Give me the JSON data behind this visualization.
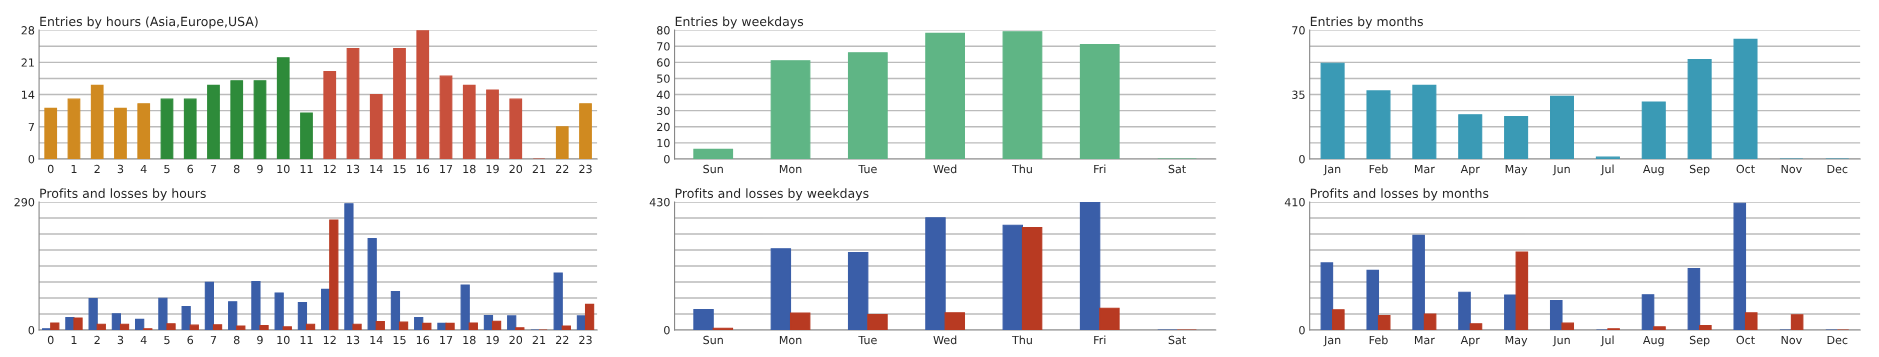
{
  "chart_data": [
    {
      "type": "bar",
      "title": "Entries by hours (Asia,Europe,USA)",
      "categories": [
        "0",
        "1",
        "2",
        "3",
        "4",
        "5",
        "6",
        "7",
        "8",
        "9",
        "10",
        "11",
        "12",
        "13",
        "14",
        "15",
        "16",
        "17",
        "18",
        "19",
        "20",
        "21",
        "22",
        "23"
      ],
      "values": [
        11,
        13,
        16,
        11,
        12,
        13,
        13,
        16,
        17,
        17,
        22,
        10,
        19,
        24,
        14,
        24,
        28,
        18,
        16,
        15,
        13,
        0,
        7,
        12
      ],
      "colors": [
        "#d08a20",
        "#d08a20",
        "#d08a20",
        "#d08a20",
        "#d08a20",
        "#2e8b3a",
        "#2e8b3a",
        "#2e8b3a",
        "#2e8b3a",
        "#2e8b3a",
        "#2e8b3a",
        "#2e8b3a",
        "#c8503c",
        "#c8503c",
        "#c8503c",
        "#c8503c",
        "#c8503c",
        "#c8503c",
        "#c8503c",
        "#c8503c",
        "#c8503c",
        "#c8503c",
        "#d08a20",
        "#d08a20"
      ],
      "ylim": [
        0,
        28
      ],
      "yticks": [
        0,
        {
          "value": 3.5,
          "label": null
        },
        7,
        {
          "value": 10.5,
          "label": null
        },
        14,
        {
          "value": 17.5,
          "label": null
        },
        21,
        {
          "value": 24.5,
          "label": null
        },
        28
      ],
      "grid": "y"
    },
    {
      "type": "bar",
      "title": "Entries by weekdays",
      "categories": [
        "Sun",
        "Mon",
        "Tue",
        "Wed",
        "Thu",
        "Fri",
        "Sat"
      ],
      "values": [
        6,
        61,
        66,
        78,
        79,
        71,
        0
      ],
      "color": "#5fb585",
      "ylim": [
        0,
        80
      ],
      "yticks": [
        0,
        10,
        20,
        30,
        40,
        50,
        60,
        70,
        80
      ],
      "grid": "y"
    },
    {
      "type": "bar",
      "title": "Entries by months",
      "categories": [
        "Jan",
        "Feb",
        "Mar",
        "Apr",
        "May",
        "Jun",
        "Jul",
        "Aug",
        "Sep",
        "Oct",
        "Nov",
        "Dec"
      ],
      "values": [
        52,
        37,
        40,
        24,
        23,
        34,
        1,
        31,
        54,
        65,
        0,
        0
      ],
      "color": "#3a9ab5",
      "ylim": [
        0,
        70
      ],
      "yticks": [
        0,
        {
          "value": 8.75,
          "label": null
        },
        {
          "value": 17.5,
          "label": null
        },
        {
          "value": 26.25,
          "label": null
        },
        35,
        {
          "value": 43.75,
          "label": null
        },
        {
          "value": 52.5,
          "label": null
        },
        {
          "value": 61.25,
          "label": null
        },
        70
      ],
      "grid": "y"
    },
    {
      "type": "bar",
      "title": "Profits and losses by hours",
      "categories": [
        "0",
        "1",
        "2",
        "3",
        "4",
        "5",
        "6",
        "7",
        "8",
        "9",
        "10",
        "11",
        "12",
        "13",
        "14",
        "15",
        "16",
        "17",
        "18",
        "19",
        "20",
        "21",
        "22",
        "23"
      ],
      "series": [
        {
          "color": "#3a5ea8",
          "values": [
            3,
            28,
            71,
            37,
            24,
            72,
            53,
            108,
            64,
            110,
            84,
            62,
            92,
            286,
            207,
            87,
            28,
            15,
            102,
            33,
            32,
            0,
            129,
            32
          ]
        },
        {
          "color": "#b83a22",
          "values": [
            16,
            27,
            13,
            13,
            3,
            14,
            11,
            12,
            9,
            10,
            7,
            13,
            249,
            13,
            19,
            18,
            15,
            15,
            16,
            20,
            5,
            0,
            9,
            58
          ]
        }
      ],
      "ylim": [
        0,
        290
      ],
      "yticks": [
        0,
        {
          "value": 36.25,
          "label": null
        },
        {
          "value": 72.5,
          "label": null
        },
        {
          "value": 108.75,
          "label": null
        },
        {
          "value": 145,
          "label": null
        },
        {
          "value": 181.25,
          "label": null
        },
        {
          "value": 217.5,
          "label": null
        },
        {
          "value": 253.75,
          "label": null
        },
        290
      ],
      "grid": "y"
    },
    {
      "type": "bar",
      "title": "Profits and losses by weekdays",
      "categories": [
        "Sun",
        "Mon",
        "Tue",
        "Wed",
        "Thu",
        "Fri",
        "Sat"
      ],
      "series": [
        {
          "color": "#3a5ea8",
          "values": [
            69,
            273,
            260,
            377,
            352,
            429,
            0
          ]
        },
        {
          "color": "#b83a22",
          "values": [
            6,
            57,
            52,
            58,
            344,
            73,
            0
          ]
        }
      ],
      "ylim": [
        0,
        430
      ],
      "yticks": [
        0,
        {
          "value": 53.75,
          "label": null
        },
        {
          "value": 107.5,
          "label": null
        },
        {
          "value": 161.25,
          "label": null
        },
        {
          "value": 215,
          "label": null
        },
        {
          "value": 268.75,
          "label": null
        },
        {
          "value": 322.5,
          "label": null
        },
        {
          "value": 376.25,
          "label": null
        },
        430
      ],
      "grid": "y"
    },
    {
      "type": "bar",
      "title": "Profits and losses by months",
      "categories": [
        "Jan",
        "Feb",
        "Mar",
        "Apr",
        "May",
        "Jun",
        "Jul",
        "Aug",
        "Sep",
        "Oct",
        "Nov",
        "Dec"
      ],
      "series": [
        {
          "color": "#3a5ea8",
          "values": [
            215,
            191,
            303,
            121,
            112,
            94,
            0,
            113,
            197,
            406,
            0,
            0
          ]
        },
        {
          "color": "#b83a22",
          "values": [
            65,
            46,
            51,
            20,
            250,
            22,
            4,
            10,
            14,
            55,
            49,
            0
          ]
        }
      ],
      "ylim": [
        0,
        410
      ],
      "yticks": [
        0,
        {
          "value": 51.25,
          "label": null
        },
        {
          "value": 102.5,
          "label": null
        },
        {
          "value": 153.75,
          "label": null
        },
        {
          "value": 205,
          "label": null
        },
        {
          "value": 256.25,
          "label": null
        },
        {
          "value": 307.5,
          "label": null
        },
        {
          "value": 358.75,
          "label": null
        },
        410
      ],
      "grid": "y"
    }
  ]
}
